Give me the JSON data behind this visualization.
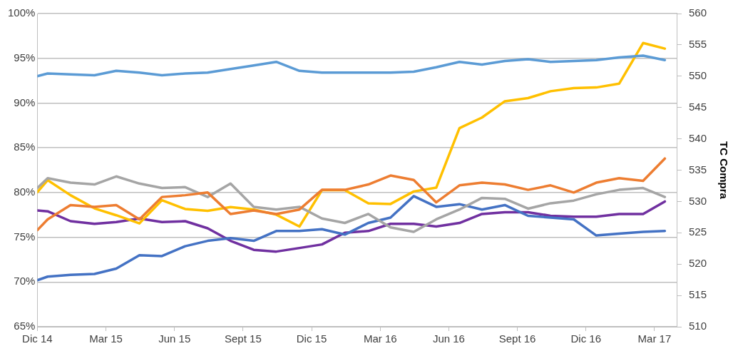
{
  "chart_data": {
    "type": "line",
    "y2label": "TC Compra",
    "x": [
      "2014-12-01",
      "2014-12-15",
      "2015-01-15",
      "2015-02-15",
      "2015-03-15",
      "2015-04-15",
      "2015-05-15",
      "2015-06-15",
      "2015-07-15",
      "2015-08-15",
      "2015-09-15",
      "2015-10-15",
      "2015-11-15",
      "2015-12-15",
      "2016-01-15",
      "2016-02-15",
      "2016-03-15",
      "2016-04-15",
      "2016-05-15",
      "2016-06-15",
      "2016-07-15",
      "2016-08-15",
      "2016-09-15",
      "2016-10-15",
      "2016-11-15",
      "2016-12-15",
      "2017-01-15",
      "2017-02-15",
      "2017-03-15"
    ],
    "xlim": [
      "2014-12-01",
      "2017-04-01"
    ],
    "xticks": [
      {
        "value": "2014-12-01",
        "label": "Dic 14"
      },
      {
        "value": "2015-03-01",
        "label": "Mar 15"
      },
      {
        "value": "2015-06-01",
        "label": "Jun 15"
      },
      {
        "value": "2015-09-01",
        "label": "Sept 15"
      },
      {
        "value": "2015-12-01",
        "label": "Dic 15"
      },
      {
        "value": "2016-03-01",
        "label": "Mar 16"
      },
      {
        "value": "2016-06-01",
        "label": "Jun 16"
      },
      {
        "value": "2016-09-01",
        "label": "Sept 16"
      },
      {
        "value": "2016-12-01",
        "label": "Dic 16"
      },
      {
        "value": "2017-03-01",
        "label": "Mar 17"
      }
    ],
    "ylim": [
      65,
      100
    ],
    "yticks": [
      {
        "value": 65,
        "label": "65%"
      },
      {
        "value": 70,
        "label": "70%"
      },
      {
        "value": 75,
        "label": "75%"
      },
      {
        "value": 80,
        "label": "80%"
      },
      {
        "value": 85,
        "label": "85%"
      },
      {
        "value": 90,
        "label": "90%"
      },
      {
        "value": 95,
        "label": "95%"
      },
      {
        "value": 100,
        "label": "100%"
      }
    ],
    "y2lim": [
      510,
      560
    ],
    "y2ticks": [
      510,
      515,
      520,
      525,
      530,
      535,
      540,
      545,
      550,
      555,
      560
    ],
    "grid": "y",
    "legend": false,
    "marker": "none",
    "line_style": "solid",
    "series": [
      {
        "color": "#5b9bd5",
        "values": [
          93.0,
          93.3,
          93.2,
          93.1,
          93.6,
          93.4,
          93.1,
          93.3,
          93.4,
          93.8,
          94.2,
          94.6,
          93.6,
          93.4,
          93.4,
          93.4,
          93.4,
          93.5,
          94.0,
          94.6,
          94.3,
          94.7,
          94.9,
          94.6,
          94.7,
          94.8,
          95.1,
          95.3,
          94.8
        ]
      },
      {
        "color": "#ed7d31",
        "values": [
          75.8,
          77.0,
          78.6,
          78.4,
          78.6,
          77.0,
          79.5,
          79.7,
          80.0,
          77.6,
          78.0,
          77.6,
          78.1,
          80.3,
          80.3,
          80.9,
          81.9,
          81.4,
          78.9,
          80.8,
          81.1,
          80.9,
          80.3,
          80.8,
          80.0,
          81.1,
          81.6,
          81.3,
          83.8
        ]
      },
      {
        "color": "#a5a5a5",
        "values": [
          80.5,
          81.6,
          81.1,
          80.9,
          81.8,
          81.0,
          80.5,
          80.6,
          79.5,
          81.0,
          78.4,
          78.1,
          78.4,
          77.1,
          76.6,
          77.6,
          76.1,
          75.6,
          77.0,
          78.1,
          79.4,
          79.3,
          78.2,
          78.8,
          79.1,
          79.8,
          80.3,
          80.5,
          79.5
        ]
      },
      {
        "color": "#ffc000",
        "axis": "y2",
        "values": [
          531.5,
          533.4,
          531.0,
          528.9,
          527.8,
          526.5,
          530.2,
          528.8,
          528.5,
          529.1,
          528.7,
          527.9,
          526.0,
          531.8,
          531.8,
          529.7,
          529.6,
          531.6,
          532.2,
          541.7,
          543.4,
          546.0,
          546.5,
          547.6,
          548.1,
          548.2,
          548.8,
          555.3,
          554.4
        ]
      },
      {
        "color": "#4472c4",
        "values": [
          70.2,
          70.6,
          70.8,
          70.9,
          71.5,
          73.0,
          72.9,
          74.0,
          74.6,
          74.9,
          74.6,
          75.7,
          75.7,
          75.9,
          75.3,
          76.6,
          77.2,
          79.6,
          78.4,
          78.7,
          78.1,
          78.6,
          77.4,
          77.2,
          77.0,
          75.2,
          75.4,
          75.6,
          75.7
        ]
      },
      {
        "color": "#7030a0",
        "values": [
          78.0,
          77.9,
          76.8,
          76.5,
          76.7,
          77.1,
          76.7,
          76.8,
          76.0,
          74.6,
          73.6,
          73.4,
          73.8,
          74.2,
          75.5,
          75.7,
          76.5,
          76.5,
          76.2,
          76.6,
          77.6,
          77.8,
          77.8,
          77.4,
          77.3,
          77.3,
          77.6,
          77.6,
          79.0
        ]
      }
    ]
  }
}
